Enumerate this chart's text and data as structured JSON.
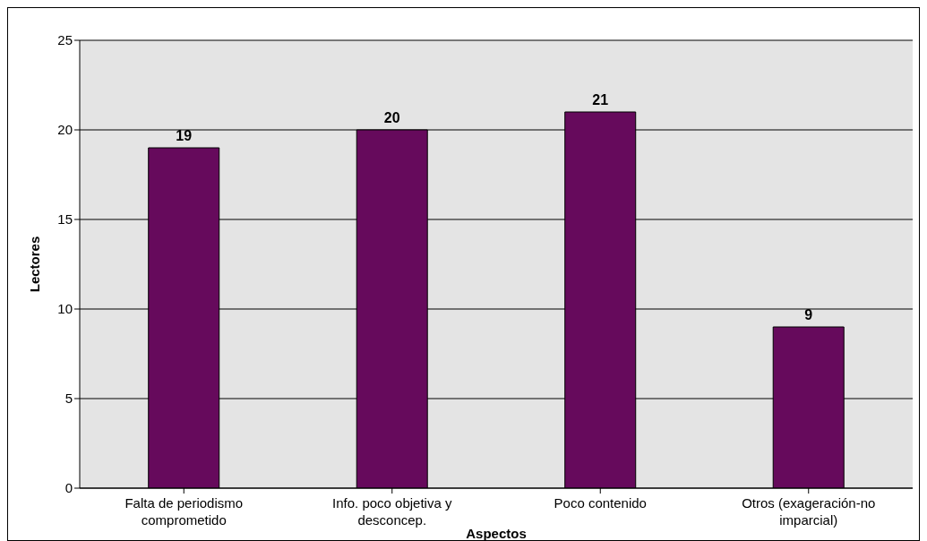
{
  "chart_data": {
    "type": "bar",
    "categories": [
      "Falta de periodismo comprometido",
      "Info. poco objetiva y desconcep.",
      "Poco contenido",
      "Otros (exageración-no imparcial)"
    ],
    "values": [
      19,
      20,
      21,
      9
    ],
    "color": "#660a5c",
    "xlabel": "Aspectos",
    "ylabel": "Lectores",
    "ylim": [
      0,
      25
    ],
    "yticks": [
      0,
      5,
      10,
      15,
      20,
      25
    ],
    "grid": "y",
    "data_labels": true
  }
}
